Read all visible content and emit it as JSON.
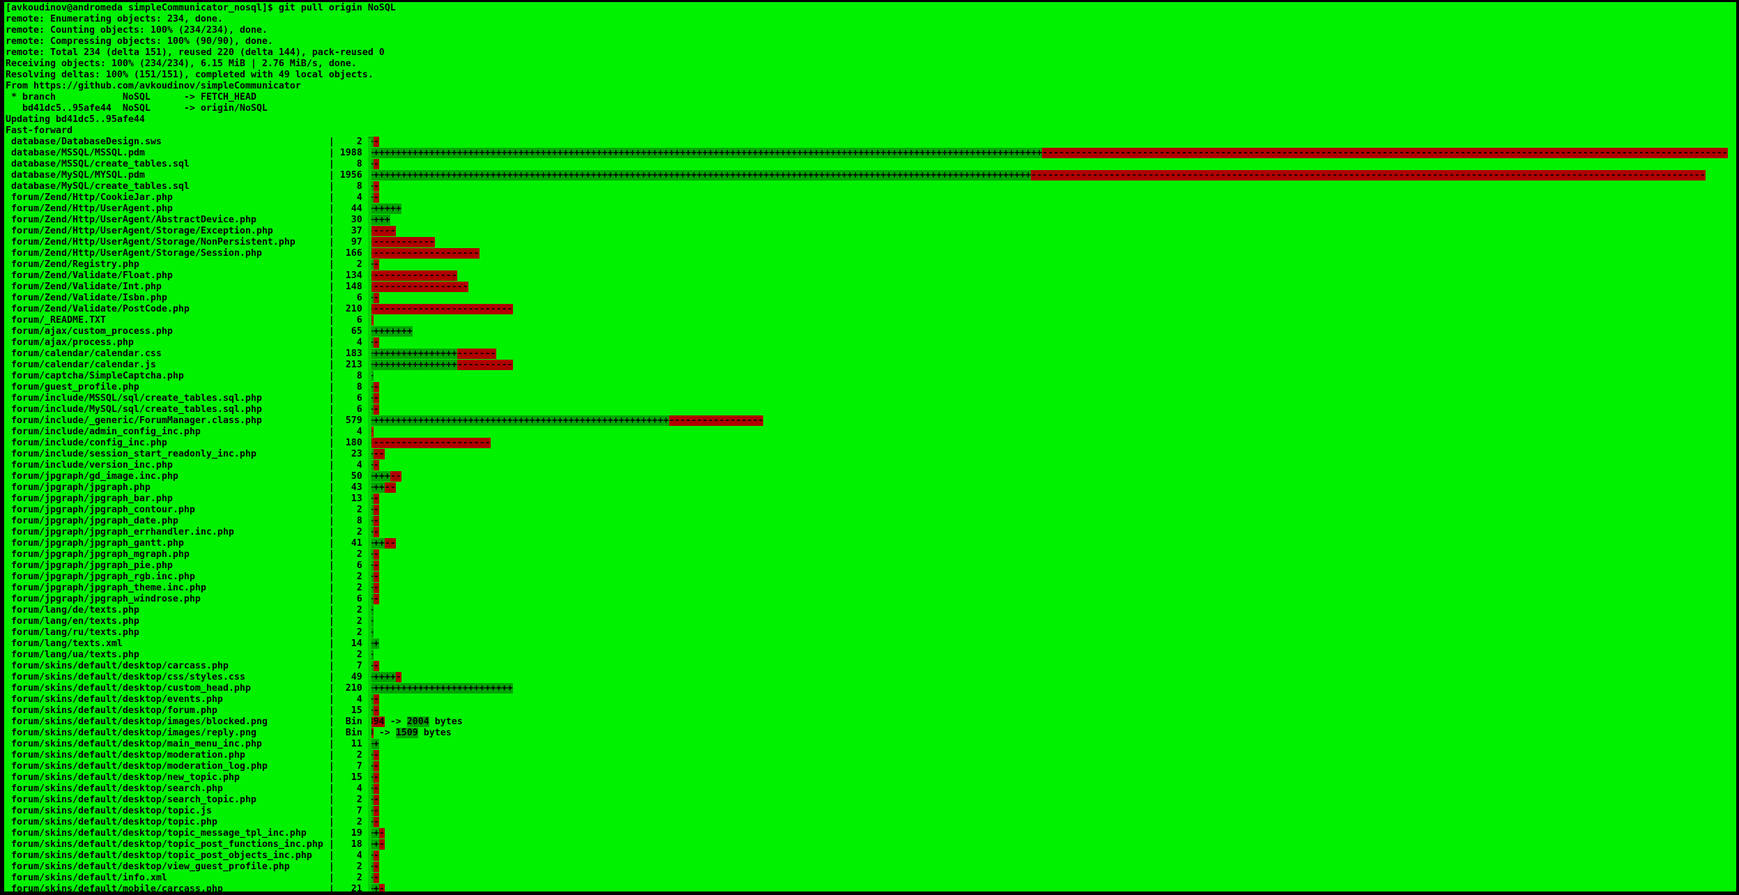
{
  "terminal": {
    "colors": {
      "screen_bg": "#00f200",
      "text": "#000000",
      "insert_bar_bg": "#00a400",
      "delete_bar_bg": "#b00000",
      "bar_column_tint": "#00cf00",
      "frame": "#000000"
    },
    "prompt": "[avkoudinov@andromeda simpleCommunicator_nosql]$",
    "command": "git pull origin NoSQL",
    "header_lines": [
      "[avkoudinov@andromeda simpleCommunicator_nosql]$ git pull origin NoSQL",
      "remote: Enumerating objects: 234, done.",
      "remote: Counting objects: 100% (234/234), done.",
      "remote: Compressing objects: 100% (90/90), done.",
      "remote: Total 234 (delta 151), reused 220 (delta 144), pack-reused 0",
      "Receiving objects: 100% (234/234), 6.15 MiB | 2.76 MiB/s, done.",
      "Resolving deltas: 100% (151/151), completed with 49 local objects.",
      "From https://github.com/avkoudinov/simpleCommunicator",
      " * branch            NoSQL      -> FETCH_HEAD",
      "   bd41dc5..95afe44  NoSQL      -> origin/NoSQL",
      "Updating bd41dc5..95afe44",
      "Fast-forward"
    ],
    "diffstat_separator": "|",
    "bin_arrow": "->",
    "bin_unit": "bytes",
    "files": [
      {
        "path": "database/DatabaseDesign.sws",
        "count": "2",
        "plus": 1,
        "minus": 1
      },
      {
        "path": "database/MSSQL/MSSQL.pdm",
        "count": "1988",
        "plus": 121,
        "minus": 123
      },
      {
        "path": "database/MSSQL/create_tables.sql",
        "count": "8",
        "plus": 1,
        "minus": 1
      },
      {
        "path": "database/MySQL/MYSQL.pdm",
        "count": "1956",
        "plus": 119,
        "minus": 121
      },
      {
        "path": "database/MySQL/create_tables.sql",
        "count": "8",
        "plus": 1,
        "minus": 1
      },
      {
        "path": "forum/Zend/Http/CookieJar.php",
        "count": "4",
        "plus": 1,
        "minus": 1
      },
      {
        "path": "forum/Zend/Http/UserAgent.php",
        "count": "44",
        "plus": 6,
        "minus": 0
      },
      {
        "path": "forum/Zend/Http/UserAgent/AbstractDevice.php",
        "count": "30",
        "plus": 4,
        "minus": 0
      },
      {
        "path": "forum/Zend/Http/UserAgent/Storage/Exception.php",
        "count": "37",
        "plus": 0,
        "minus": 5
      },
      {
        "path": "forum/Zend/Http/UserAgent/Storage/NonPersistent.php",
        "count": "97",
        "plus": 0,
        "minus": 12
      },
      {
        "path": "forum/Zend/Http/UserAgent/Storage/Session.php",
        "count": "166",
        "plus": 0,
        "minus": 20
      },
      {
        "path": "forum/Zend/Registry.php",
        "count": "2",
        "plus": 1,
        "minus": 1
      },
      {
        "path": "forum/Zend/Validate/Float.php",
        "count": "134",
        "plus": 0,
        "minus": 16
      },
      {
        "path": "forum/Zend/Validate/Int.php",
        "count": "148",
        "plus": 0,
        "minus": 18
      },
      {
        "path": "forum/Zend/Validate/Isbn.php",
        "count": "6",
        "plus": 1,
        "minus": 1
      },
      {
        "path": "forum/Zend/Validate/PostCode.php",
        "count": "210",
        "plus": 0,
        "minus": 26
      },
      {
        "path": "forum/_README.TXT",
        "count": "6",
        "plus": 0,
        "minus": 1
      },
      {
        "path": "forum/ajax/custom_process.php",
        "count": "65",
        "plus": 8,
        "minus": 0
      },
      {
        "path": "forum/ajax/process.php",
        "count": "4",
        "plus": 1,
        "minus": 1
      },
      {
        "path": "forum/calendar/calendar.css",
        "count": "183",
        "plus": 16,
        "minus": 7
      },
      {
        "path": "forum/calendar/calendar.js",
        "count": "213",
        "plus": 16,
        "minus": 10
      },
      {
        "path": "forum/captcha/SimpleCaptcha.php",
        "count": "8",
        "plus": 1,
        "minus": 0
      },
      {
        "path": "forum/guest_profile.php",
        "count": "8",
        "plus": 1,
        "minus": 1
      },
      {
        "path": "forum/include/MSSQL/sql/create_tables.sql.php",
        "count": "6",
        "plus": 1,
        "minus": 1
      },
      {
        "path": "forum/include/MySQL/sql/create_tables.sql.php",
        "count": "6",
        "plus": 1,
        "minus": 1
      },
      {
        "path": "forum/include/_generic/ForumManager.class.php",
        "count": "579",
        "plus": 54,
        "minus": 17
      },
      {
        "path": "forum/include/admin_config_inc.php",
        "count": "4",
        "plus": 0,
        "minus": 1
      },
      {
        "path": "forum/include/config_inc.php",
        "count": "180",
        "plus": 0,
        "minus": 22
      },
      {
        "path": "forum/include/session_start_readonly_inc.php",
        "count": "23",
        "plus": 1,
        "minus": 2
      },
      {
        "path": "forum/include/version_inc.php",
        "count": "4",
        "plus": 1,
        "minus": 1
      },
      {
        "path": "forum/jpgraph/gd_image.inc.php",
        "count": "50",
        "plus": 4,
        "minus": 2
      },
      {
        "path": "forum/jpgraph/jpgraph.php",
        "count": "43",
        "plus": 3,
        "minus": 2
      },
      {
        "path": "forum/jpgraph/jpgraph_bar.php",
        "count": "13",
        "plus": 1,
        "minus": 1
      },
      {
        "path": "forum/jpgraph/jpgraph_contour.php",
        "count": "2",
        "plus": 1,
        "minus": 1
      },
      {
        "path": "forum/jpgraph/jpgraph_date.php",
        "count": "8",
        "plus": 1,
        "minus": 1
      },
      {
        "path": "forum/jpgraph/jpgraph_errhandler.inc.php",
        "count": "2",
        "plus": 1,
        "minus": 1
      },
      {
        "path": "forum/jpgraph/jpgraph_gantt.php",
        "count": "41",
        "plus": 3,
        "minus": 2
      },
      {
        "path": "forum/jpgraph/jpgraph_mgraph.php",
        "count": "2",
        "plus": 1,
        "minus": 1
      },
      {
        "path": "forum/jpgraph/jpgraph_pie.php",
        "count": "6",
        "plus": 1,
        "minus": 1
      },
      {
        "path": "forum/jpgraph/jpgraph_rgb.inc.php",
        "count": "2",
        "plus": 1,
        "minus": 1
      },
      {
        "path": "forum/jpgraph/jpgraph_theme.inc.php",
        "count": "2",
        "plus": 1,
        "minus": 1
      },
      {
        "path": "forum/jpgraph/jpgraph_windrose.php",
        "count": "6",
        "plus": 1,
        "minus": 1
      },
      {
        "path": "forum/lang/de/texts.php",
        "count": "2",
        "plus": 1,
        "minus": 0
      },
      {
        "path": "forum/lang/en/texts.php",
        "count": "2",
        "plus": 1,
        "minus": 0
      },
      {
        "path": "forum/lang/ru/texts.php",
        "count": "2",
        "plus": 1,
        "minus": 0
      },
      {
        "path": "forum/lang/texts.xml",
        "count": "14",
        "plus": 2,
        "minus": 0
      },
      {
        "path": "forum/lang/ua/texts.php",
        "count": "2",
        "plus": 1,
        "minus": 0
      },
      {
        "path": "forum/skins/default/desktop/carcass.php",
        "count": "7",
        "plus": 1,
        "minus": 1
      },
      {
        "path": "forum/skins/default/desktop/css/styles.css",
        "count": "49",
        "plus": 5,
        "minus": 1
      },
      {
        "path": "forum/skins/default/desktop/custom_head.php",
        "count": "210",
        "plus": 26,
        "minus": 0
      },
      {
        "path": "forum/skins/default/desktop/events.php",
        "count": "4",
        "plus": 1,
        "minus": 1
      },
      {
        "path": "forum/skins/default/desktop/forum.php",
        "count": "15",
        "plus": 1,
        "minus": 1
      },
      {
        "path": "forum/skins/default/desktop/images/blocked.png",
        "bin": true,
        "old_size": "394",
        "new_size": "2004"
      },
      {
        "path": "forum/skins/default/desktop/images/reply.png",
        "bin": true,
        "old_size": "0",
        "new_size": "1509"
      },
      {
        "path": "forum/skins/default/desktop/main_menu_inc.php",
        "count": "11",
        "plus": 2,
        "minus": 0
      },
      {
        "path": "forum/skins/default/desktop/moderation.php",
        "count": "2",
        "plus": 1,
        "minus": 1
      },
      {
        "path": "forum/skins/default/desktop/moderation_log.php",
        "count": "7",
        "plus": 1,
        "minus": 1
      },
      {
        "path": "forum/skins/default/desktop/new_topic.php",
        "count": "15",
        "plus": 1,
        "minus": 1
      },
      {
        "path": "forum/skins/default/desktop/search.php",
        "count": "4",
        "plus": 1,
        "minus": 1
      },
      {
        "path": "forum/skins/default/desktop/search_topic.php",
        "count": "2",
        "plus": 1,
        "minus": 1
      },
      {
        "path": "forum/skins/default/desktop/topic.js",
        "count": "7",
        "plus": 1,
        "minus": 1
      },
      {
        "path": "forum/skins/default/desktop/topic.php",
        "count": "2",
        "plus": 1,
        "minus": 1
      },
      {
        "path": "forum/skins/default/desktop/topic_message_tpl_inc.php",
        "count": "19",
        "plus": 2,
        "minus": 1
      },
      {
        "path": "forum/skins/default/desktop/topic_post_functions_inc.php",
        "count": "18",
        "plus": 2,
        "minus": 1
      },
      {
        "path": "forum/skins/default/desktop/topic_post_objects_inc.php",
        "count": "4",
        "plus": 1,
        "minus": 1
      },
      {
        "path": "forum/skins/default/desktop/view_guest_profile.php",
        "count": "2",
        "plus": 1,
        "minus": 1
      },
      {
        "path": "forum/skins/default/info.xml",
        "count": "2",
        "plus": 1,
        "minus": 1
      },
      {
        "path": "forum/skins/default/mobile/carcass.php",
        "count": "21",
        "plus": 2,
        "minus": 1
      }
    ]
  }
}
